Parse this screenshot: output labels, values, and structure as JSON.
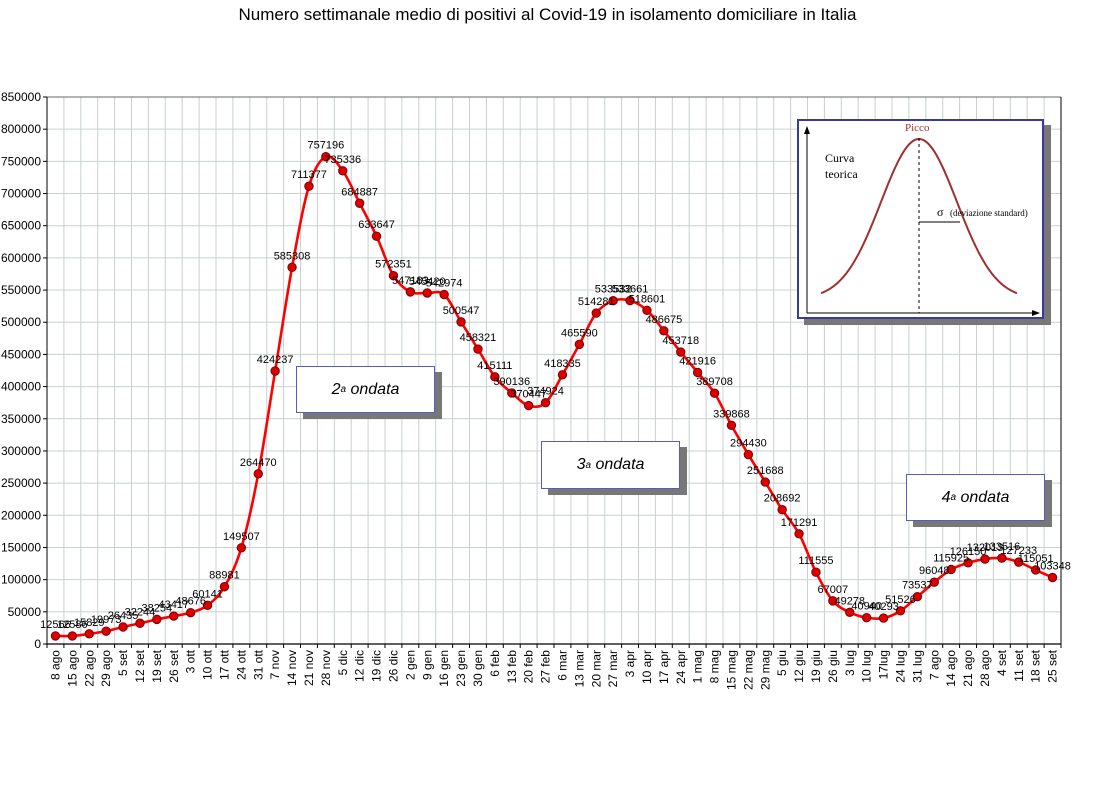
{
  "chart_data": {
    "type": "line",
    "title": "Numero settimanale medio di positivi al Covid-19  in isolamento domiciliare in Italia",
    "x": [
      "8 ago",
      "15 ago",
      "22 ago",
      "29 ago",
      "5 set",
      "12 set",
      "19 set",
      "26 set",
      "3 ott",
      "10 ott",
      "17 ott",
      "24 ott",
      "31 ott",
      "7 nov",
      "14 nov",
      "21 nov",
      "28 nov",
      "5 dic",
      "12 dic",
      "19 dic",
      "26 dic",
      "2 gen",
      "9 gen",
      "16 gen",
      "23 gen",
      "30 gen",
      "6 feb",
      "13 feb",
      "20 feb",
      "27 feb",
      "6 mar",
      "13 mar",
      "20 mar",
      "27 mar",
      "3 apr",
      "10 apr",
      "17 apr",
      "24 apr",
      "1 mag",
      "8 mag",
      "15 mag",
      "22 mag",
      "29 mag",
      "5 giu",
      "12 giu",
      "19 giu",
      "26 giu",
      "3 lug",
      "10 lug",
      "17lug",
      "24 lug",
      "31 lug",
      "7 ago",
      "14 ago",
      "21 ago",
      "28 ago",
      "4 set",
      "11 set",
      "18 set",
      "25 set"
    ],
    "series": [
      {
        "values": [
          12566,
          12586,
          15829,
          19973,
          26435,
          32244,
          38254,
          43417,
          48676,
          60141,
          88981,
          149507,
          264470,
          424237,
          585308,
          711377,
          757196,
          735336,
          684887,
          633647,
          572351,
          547183,
          545420,
          542974,
          500547,
          458321,
          415111,
          390136,
          370447,
          374924,
          418335,
          465590,
          514281,
          533532,
          533661,
          518601,
          486675,
          453718,
          421916,
          389708,
          339868,
          294430,
          251688,
          208692,
          171291,
          111555,
          67007,
          49278,
          40940,
          40293,
          51526,
          73537,
          96048,
          115925,
          126150,
          132013,
          133516,
          127233,
          115051,
          103348
        ],
        "labels": [
          "12566",
          "12586",
          "15829",
          "19973",
          "26435",
          "32244",
          "38254",
          "43417",
          "48676",
          "60141",
          "88981",
          "149507",
          "264470",
          "424237",
          "585308",
          "711377",
          "757196",
          "735336",
          "684887",
          "633647",
          "572351",
          "547183",
          "545420",
          "542974",
          "500547",
          "458321",
          "415111",
          "390136",
          "370447",
          "374924",
          "418335",
          "465590",
          "514281",
          "533532",
          "533661",
          "518601",
          "486675",
          "453718",
          "421916",
          "389708",
          "339868",
          "294430",
          "251688",
          "208692",
          "171291",
          "111555",
          "67007",
          "49278",
          "40940",
          "40293",
          "51526",
          "73537",
          "96048",
          "115925",
          "126150",
          "132013",
          "133516",
          "127233",
          "115051",
          "103348"
        ]
      }
    ],
    "ylim": [
      0,
      850000
    ],
    "yticks": [
      0,
      50000,
      100000,
      150000,
      200000,
      250000,
      300000,
      350000,
      400000,
      450000,
      500000,
      550000,
      600000,
      650000,
      700000,
      750000,
      800000,
      850000
    ],
    "xlabel": "",
    "ylabel": "",
    "grid": true,
    "line_color": "#ff0000",
    "marker_color": "#dd0000",
    "marker_edge_color": "#7a0000",
    "grid_color": "#c8d0d0"
  },
  "annotations": [
    {
      "id": "wave2",
      "number": "2",
      "suffix": "a",
      "text": "ondata"
    },
    {
      "id": "wave3",
      "number": "3",
      "suffix": "a",
      "text": "ondata"
    },
    {
      "id": "wave4",
      "number": "4",
      "suffix": "a",
      "text": "ondata"
    }
  ],
  "inset": {
    "peak_label": "Picco",
    "curve_label_1": "Curva",
    "curve_label_2": "teorica",
    "sigma": "σ",
    "sigma_label": "(deviazione standard)",
    "curve_color": "#a03030"
  }
}
